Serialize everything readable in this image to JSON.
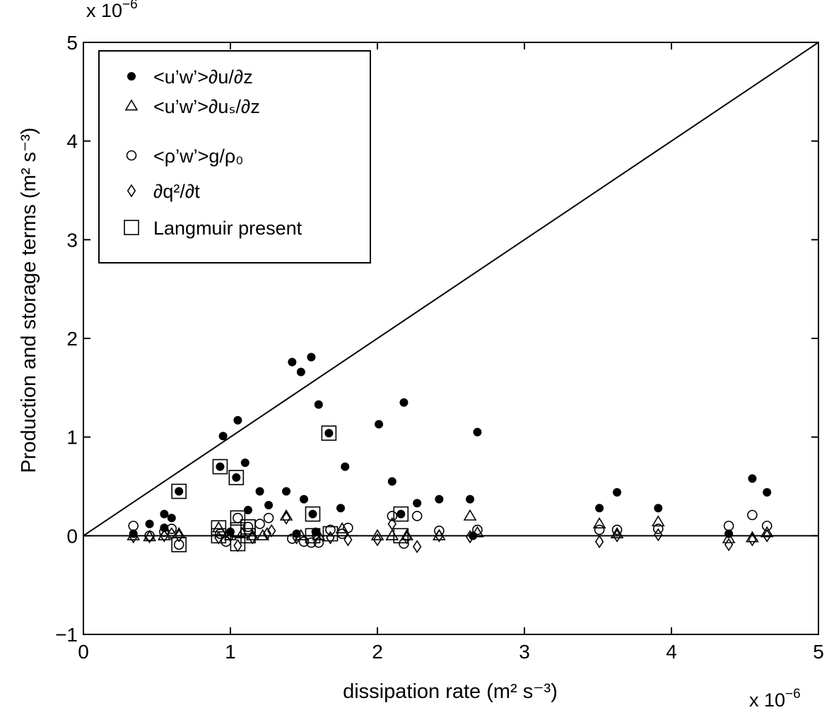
{
  "chart_data": {
    "type": "scatter",
    "xlabel": "dissipation rate (m² s⁻³)",
    "ylabel": "Production and storage terms (m² s⁻³)",
    "x_multiplier": {
      "base": "x 10",
      "exponent": "−6"
    },
    "y_multiplier": {
      "base": "x 10",
      "exponent": "−6"
    },
    "xlim": [
      0,
      5
    ],
    "ylim": [
      -1,
      5
    ],
    "xticks": [
      "0",
      "1",
      "2",
      "3",
      "4",
      "5"
    ],
    "yticks": [
      "−1",
      "0",
      "1",
      "2",
      "3",
      "4",
      "5"
    ],
    "grid": false,
    "legend_position": "top-left",
    "reference_lines": [
      {
        "kind": "one-to-one",
        "from": [
          0,
          0
        ],
        "to": [
          5,
          5
        ]
      },
      {
        "kind": "zero",
        "from": [
          0,
          0
        ],
        "to": [
          5,
          0
        ]
      }
    ],
    "series": [
      {
        "name": "<u’w’>∂u/∂z",
        "marker": "filled-circle",
        "points": [
          [
            0.34,
            0.02
          ],
          [
            0.45,
            0.12
          ],
          [
            0.55,
            0.22
          ],
          [
            0.6,
            0.18
          ],
          [
            0.55,
            0.08
          ],
          [
            0.65,
            0.45
          ],
          [
            0.95,
            1.01
          ],
          [
            0.93,
            0.7
          ],
          [
            1.05,
            1.17
          ],
          [
            1.04,
            0.59
          ],
          [
            1.1,
            0.74
          ],
          [
            1.12,
            0.26
          ],
          [
            1.2,
            0.45
          ],
          [
            1.26,
            0.31
          ],
          [
            1.38,
            0.45
          ],
          [
            1.42,
            1.76
          ],
          [
            1.48,
            1.66
          ],
          [
            1.5,
            0.37
          ],
          [
            1.55,
            1.81
          ],
          [
            1.56,
            0.22
          ],
          [
            1.6,
            1.33
          ],
          [
            1.67,
            1.04
          ],
          [
            1.75,
            0.28
          ],
          [
            1.78,
            0.7
          ],
          [
            2.01,
            1.13
          ],
          [
            2.1,
            0.55
          ],
          [
            2.18,
            1.35
          ],
          [
            2.16,
            0.22
          ],
          [
            2.27,
            0.33
          ],
          [
            2.42,
            0.37
          ],
          [
            2.63,
            0.37
          ],
          [
            2.68,
            1.05
          ],
          [
            3.51,
            0.28
          ],
          [
            3.63,
            0.44
          ],
          [
            3.91,
            0.28
          ],
          [
            4.39,
            0.02
          ],
          [
            4.55,
            0.58
          ],
          [
            4.65,
            0.44
          ],
          [
            1.0,
            0.04
          ],
          [
            1.58,
            0.04
          ],
          [
            2.65,
            0.0
          ],
          [
            1.45,
            0.02
          ]
        ]
      },
      {
        "name": "<u’w’>∂uₛ/∂z",
        "marker": "open-triangle",
        "points": [
          [
            0.34,
            0.0
          ],
          [
            0.45,
            -0.01
          ],
          [
            0.55,
            0.0
          ],
          [
            0.65,
            0.02
          ],
          [
            0.92,
            0.08
          ],
          [
            1.0,
            0.0
          ],
          [
            1.08,
            0.02
          ],
          [
            1.15,
            0.0
          ],
          [
            1.22,
            0.0
          ],
          [
            1.38,
            0.2
          ],
          [
            1.48,
            0.0
          ],
          [
            1.6,
            0.0
          ],
          [
            1.76,
            0.07
          ],
          [
            2.0,
            0.0
          ],
          [
            2.1,
            0.0
          ],
          [
            2.2,
            0.0
          ],
          [
            2.42,
            0.0
          ],
          [
            2.63,
            0.2
          ],
          [
            2.68,
            0.03
          ],
          [
            3.51,
            0.12
          ],
          [
            3.63,
            0.02
          ],
          [
            3.91,
            0.14
          ],
          [
            4.39,
            -0.03
          ],
          [
            4.55,
            -0.02
          ],
          [
            4.65,
            0.03
          ]
        ]
      },
      {
        "name": "<ρ’w’>g/ρ₀",
        "marker": "open-circle",
        "points": [
          [
            0.34,
            0.1
          ],
          [
            0.45,
            0.0
          ],
          [
            0.55,
            0.04
          ],
          [
            0.6,
            0.07
          ],
          [
            0.65,
            -0.09
          ],
          [
            0.93,
            0.02
          ],
          [
            0.97,
            -0.06
          ],
          [
            1.05,
            0.18
          ],
          [
            1.12,
            0.09
          ],
          [
            1.2,
            0.12
          ],
          [
            1.26,
            0.18
          ],
          [
            1.42,
            -0.03
          ],
          [
            1.5,
            -0.06
          ],
          [
            1.55,
            -0.07
          ],
          [
            1.6,
            -0.07
          ],
          [
            1.68,
            0.06
          ],
          [
            1.76,
            0.02
          ],
          [
            1.8,
            0.08
          ],
          [
            2.1,
            0.2
          ],
          [
            2.18,
            -0.08
          ],
          [
            2.27,
            0.2
          ],
          [
            2.42,
            0.05
          ],
          [
            2.68,
            0.06
          ],
          [
            3.51,
            0.06
          ],
          [
            3.63,
            0.06
          ],
          [
            3.91,
            0.07
          ],
          [
            4.39,
            0.1
          ],
          [
            4.55,
            0.21
          ],
          [
            4.65,
            0.1
          ]
        ]
      },
      {
        "name": "∂q²/∂t",
        "marker": "open-diamond",
        "points": [
          [
            0.34,
            -0.01
          ],
          [
            0.45,
            -0.01
          ],
          [
            0.55,
            0.0
          ],
          [
            0.6,
            0.02
          ],
          [
            0.65,
            0.0
          ],
          [
            0.92,
            -0.02
          ],
          [
            1.0,
            0.0
          ],
          [
            1.05,
            -0.1
          ],
          [
            1.15,
            -0.02
          ],
          [
            1.25,
            0.02
          ],
          [
            1.28,
            0.05
          ],
          [
            1.38,
            0.18
          ],
          [
            1.45,
            -0.02
          ],
          [
            1.58,
            0.0
          ],
          [
            1.68,
            -0.02
          ],
          [
            1.8,
            -0.04
          ],
          [
            2.0,
            -0.04
          ],
          [
            2.1,
            0.12
          ],
          [
            2.2,
            -0.02
          ],
          [
            2.27,
            -0.11
          ],
          [
            2.42,
            0.0
          ],
          [
            2.63,
            -0.01
          ],
          [
            3.51,
            -0.06
          ],
          [
            3.63,
            0.0
          ],
          [
            3.91,
            0.01
          ],
          [
            4.39,
            -0.09
          ],
          [
            4.55,
            -0.04
          ],
          [
            4.65,
            0.0
          ]
        ]
      },
      {
        "name": "Langmuir present",
        "marker": "open-square",
        "points": [
          [
            0.65,
            0.45
          ],
          [
            0.65,
            -0.09
          ],
          [
            0.93,
            0.7
          ],
          [
            1.04,
            0.59
          ],
          [
            1.67,
            1.04
          ],
          [
            2.16,
            0.22
          ],
          [
            0.92,
            0.08
          ],
          [
            0.92,
            0.0
          ],
          [
            1.05,
            0.18
          ],
          [
            1.05,
            0.06
          ],
          [
            1.05,
            -0.08
          ],
          [
            1.12,
            0.09
          ],
          [
            1.12,
            0.0
          ],
          [
            1.56,
            0.22
          ],
          [
            1.56,
            0.0
          ],
          [
            1.68,
            0.02
          ],
          [
            2.16,
            0.0
          ]
        ]
      }
    ]
  }
}
